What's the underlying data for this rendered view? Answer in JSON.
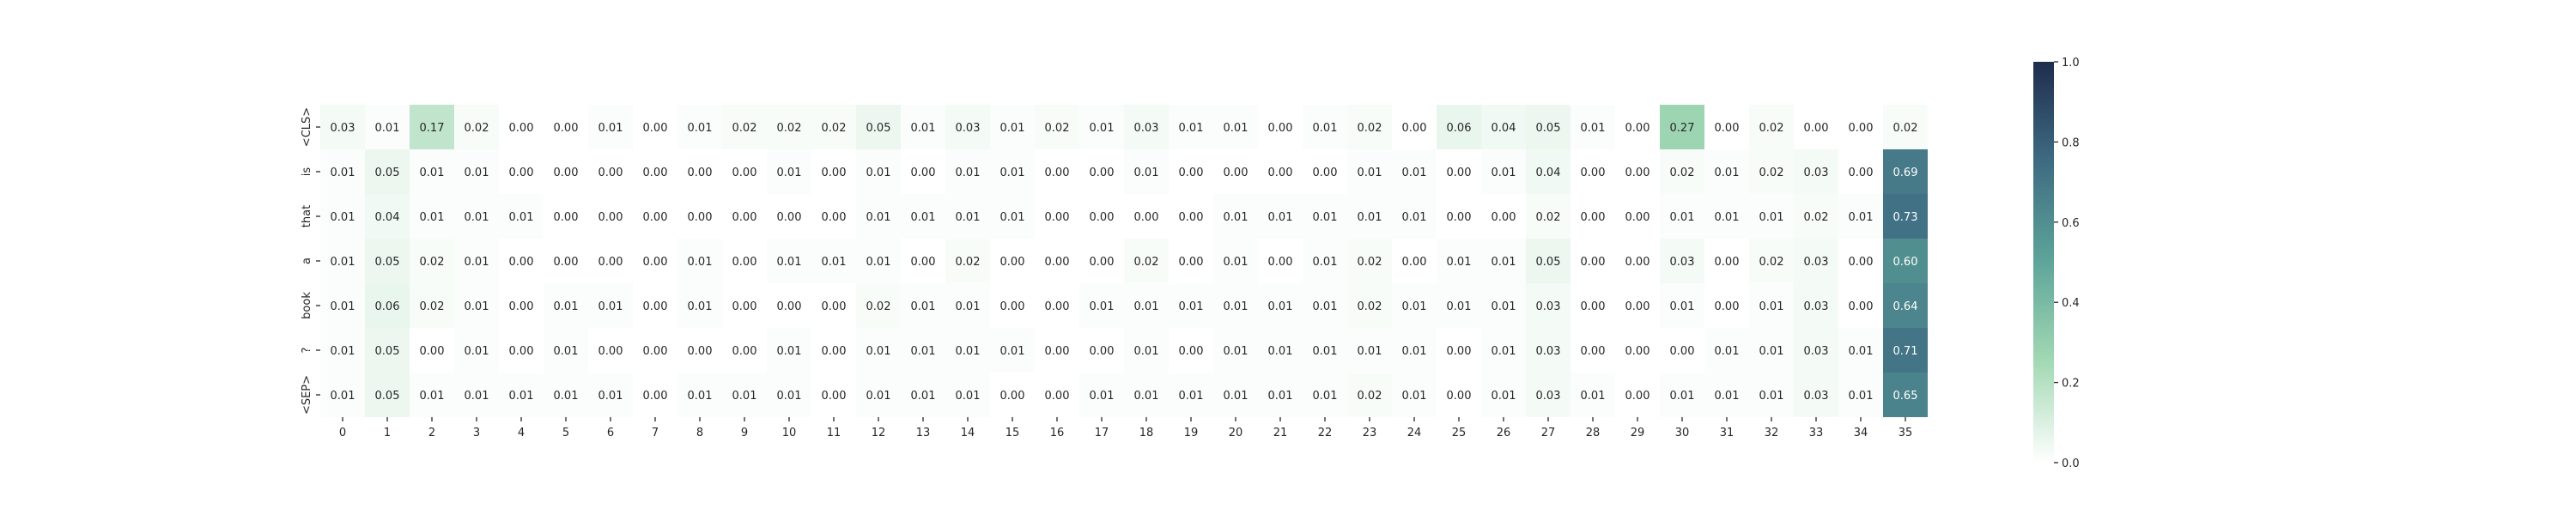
{
  "chart_data": {
    "type": "heatmap",
    "title": "",
    "xlabel": "",
    "ylabel": "",
    "x_categories": [
      "0",
      "1",
      "2",
      "3",
      "4",
      "5",
      "6",
      "7",
      "8",
      "9",
      "10",
      "11",
      "12",
      "13",
      "14",
      "15",
      "16",
      "17",
      "18",
      "19",
      "20",
      "21",
      "22",
      "23",
      "24",
      "25",
      "26",
      "27",
      "28",
      "29",
      "30",
      "31",
      "32",
      "33",
      "34",
      "35"
    ],
    "y_categories": [
      "<CLS>",
      "is",
      "that",
      "a",
      "book",
      "?",
      "<SEP>"
    ],
    "values": [
      [
        0.03,
        0.01,
        0.17,
        0.02,
        0.0,
        0.0,
        0.01,
        0.0,
        0.01,
        0.02,
        0.02,
        0.02,
        0.05,
        0.01,
        0.03,
        0.01,
        0.02,
        0.01,
        0.03,
        0.01,
        0.01,
        0.0,
        0.01,
        0.02,
        0.0,
        0.06,
        0.04,
        0.05,
        0.01,
        0.0,
        0.27,
        0.0,
        0.02,
        0.0,
        0.0,
        0.02
      ],
      [
        0.01,
        0.05,
        0.01,
        0.01,
        0.0,
        0.0,
        0.0,
        0.0,
        0.0,
        0.0,
        0.01,
        0.0,
        0.01,
        0.0,
        0.01,
        0.01,
        0.0,
        0.0,
        0.01,
        0.0,
        0.0,
        0.0,
        0.0,
        0.01,
        0.01,
        0.0,
        0.01,
        0.04,
        0.0,
        0.0,
        0.02,
        0.01,
        0.02,
        0.03,
        0.0,
        0.69
      ],
      [
        0.01,
        0.04,
        0.01,
        0.01,
        0.01,
        0.0,
        0.0,
        0.0,
        0.0,
        0.0,
        0.0,
        0.0,
        0.01,
        0.01,
        0.01,
        0.01,
        0.0,
        0.0,
        0.0,
        0.0,
        0.01,
        0.01,
        0.01,
        0.01,
        0.01,
        0.0,
        0.0,
        0.02,
        0.0,
        0.0,
        0.01,
        0.01,
        0.01,
        0.02,
        0.01,
        0.73
      ],
      [
        0.01,
        0.05,
        0.02,
        0.01,
        0.0,
        0.0,
        0.0,
        0.0,
        0.01,
        0.0,
        0.01,
        0.01,
        0.01,
        0.0,
        0.02,
        0.0,
        0.0,
        0.0,
        0.02,
        0.0,
        0.01,
        0.0,
        0.01,
        0.02,
        0.0,
        0.01,
        0.01,
        0.05,
        0.0,
        0.0,
        0.03,
        0.0,
        0.02,
        0.03,
        0.0,
        0.6
      ],
      [
        0.01,
        0.06,
        0.02,
        0.01,
        0.0,
        0.01,
        0.01,
        0.0,
        0.01,
        0.0,
        0.0,
        0.0,
        0.02,
        0.01,
        0.01,
        0.0,
        0.0,
        0.01,
        0.01,
        0.01,
        0.01,
        0.01,
        0.01,
        0.02,
        0.01,
        0.01,
        0.01,
        0.03,
        0.0,
        0.0,
        0.01,
        0.0,
        0.01,
        0.03,
        0.0,
        0.64
      ],
      [
        0.01,
        0.05,
        0.0,
        0.01,
        0.0,
        0.01,
        0.0,
        0.0,
        0.0,
        0.0,
        0.01,
        0.0,
        0.01,
        0.01,
        0.01,
        0.01,
        0.0,
        0.0,
        0.01,
        0.0,
        0.01,
        0.01,
        0.01,
        0.01,
        0.01,
        0.0,
        0.01,
        0.03,
        0.0,
        0.0,
        0.0,
        0.01,
        0.01,
        0.03,
        0.01,
        0.71
      ],
      [
        0.01,
        0.05,
        0.01,
        0.01,
        0.01,
        0.01,
        0.01,
        0.0,
        0.01,
        0.01,
        0.01,
        0.0,
        0.01,
        0.01,
        0.01,
        0.0,
        0.0,
        0.01,
        0.01,
        0.01,
        0.01,
        0.01,
        0.01,
        0.02,
        0.01,
        0.0,
        0.01,
        0.03,
        0.01,
        0.0,
        0.01,
        0.01,
        0.01,
        0.03,
        0.01,
        0.65
      ]
    ],
    "value_format": "0.00",
    "vmin": 0.0,
    "vmax": 1.0,
    "colormap": [
      "#ffffff",
      "#a3d9b4",
      "#5ea59a",
      "#3e6c82",
      "#1f2d4d"
    ],
    "colorbar": {
      "ticks": [
        "0.0",
        "0.2",
        "0.4",
        "0.6",
        "0.8",
        "1.0"
      ],
      "tick_values": [
        0.0,
        0.2,
        0.4,
        0.6,
        0.8,
        1.0
      ],
      "placement": "right"
    },
    "grid": false,
    "annotations": true
  }
}
